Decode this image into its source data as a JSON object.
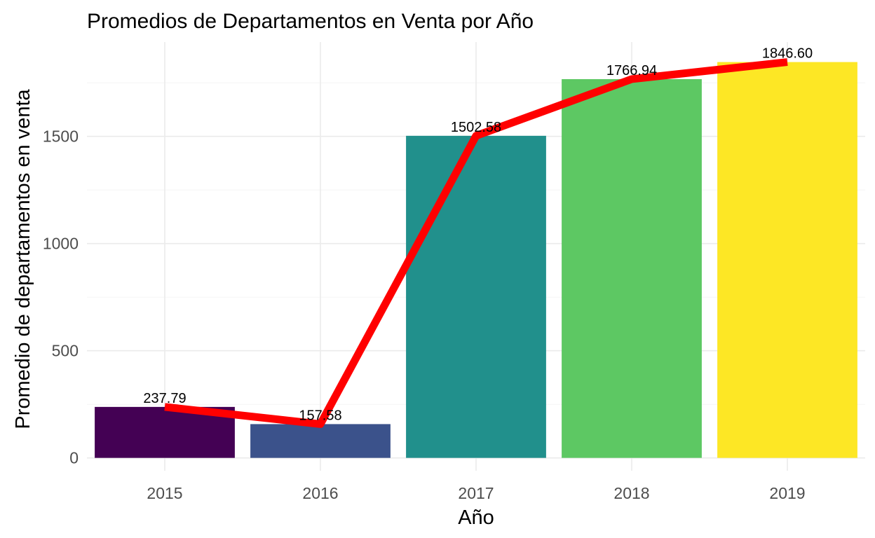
{
  "chart_data": {
    "type": "bar",
    "title": "Promedios de Departamentos en Venta por Año",
    "xlabel": "Año",
    "ylabel": "Promedio de departamentos en venta",
    "categories": [
      "2015",
      "2016",
      "2017",
      "2018",
      "2019"
    ],
    "values": [
      237.79,
      157.58,
      1502.58,
      1766.94,
      1846.6
    ],
    "data_labels": [
      "237.79",
      "157.58",
      "1502.58",
      "1766.94",
      "1846.60"
    ],
    "bar_colors": [
      "#440154",
      "#3B528B",
      "#21908C",
      "#5DC863",
      "#FDE725"
    ],
    "line_overlay": {
      "type": "line",
      "color": "#FF0000",
      "values": [
        237.79,
        157.58,
        1502.58,
        1766.94,
        1846.6
      ]
    },
    "y_ticks": [
      0,
      500,
      1000,
      1500
    ],
    "y_tick_labels": [
      "0",
      "500",
      "1000",
      "1500"
    ],
    "ylim": [
      -60,
      1940
    ],
    "grid": true,
    "legend": "none"
  }
}
